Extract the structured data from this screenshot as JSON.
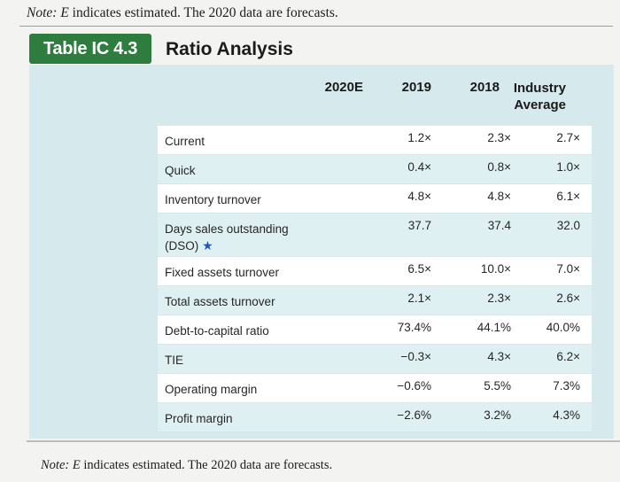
{
  "note": {
    "prefix": "Note:",
    "letter": "E",
    "text": " indicates estimated. The 2020 data are forecasts."
  },
  "table_number": "Table IC 4.3",
  "table_title": "Ratio Analysis",
  "headers": {
    "c0": "2020E",
    "c1": "2019",
    "c2": "2018",
    "c3_line1": "Industry",
    "c3_line2": "Average"
  },
  "rows": [
    {
      "label": "Current",
      "v2019": "1.2×",
      "v2018": "2.3×",
      "industry": "2.7×"
    },
    {
      "label": "Quick",
      "v2019": "0.4×",
      "v2018": "0.8×",
      "industry": "1.0×"
    },
    {
      "label": "Inventory turnover",
      "v2019": "4.8×",
      "v2018": "4.8×",
      "industry": "6.1×"
    },
    {
      "label": "Days sales outstanding",
      "label2": "(DSO)",
      "v2019": "37.7",
      "v2018": "37.4",
      "industry": "32.0"
    },
    {
      "label": "Fixed assets turnover",
      "v2019": "6.5×",
      "v2018": "10.0×",
      "industry": "7.0×"
    },
    {
      "label": "Total assets turnover",
      "v2019": "2.1×",
      "v2018": "2.3×",
      "industry": "2.6×"
    },
    {
      "label": "Debt-to-capital ratio",
      "v2019": "73.4%",
      "v2018": "44.1%",
      "industry": "40.0%"
    },
    {
      "label": "TIE",
      "v2019": "−0.3×",
      "v2018": "4.3×",
      "industry": "6.2×"
    },
    {
      "label": "Operating margin",
      "v2019": "−0.6%",
      "v2018": "5.5%",
      "industry": "7.3%"
    },
    {
      "label": "Profit margin",
      "v2019": "−2.6%",
      "v2018": "3.2%",
      "industry": "4.3%"
    }
  ],
  "colors": {
    "badge": "#2f7d3e",
    "panel": "#d6e9ec",
    "star": "#2455b3"
  }
}
